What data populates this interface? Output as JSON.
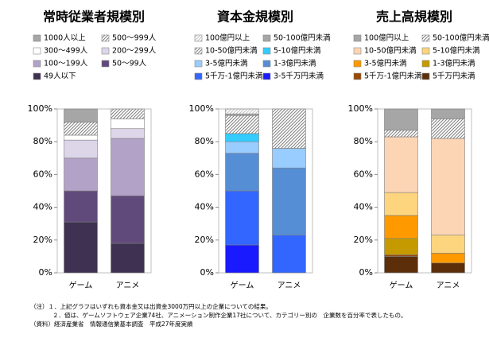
{
  "chart_data": [
    {
      "type": "stacked-bar",
      "title": "常時従業者規模別",
      "categories": [
        "ゲーム",
        "アニメ"
      ],
      "ylim": [
        0,
        100
      ],
      "yticks": [
        {
          "value": 0,
          "label": "0%"
        },
        {
          "value": 20,
          "label": "20%"
        },
        {
          "value": 40,
          "label": "40%"
        },
        {
          "value": 60,
          "label": "60%"
        },
        {
          "value": 80,
          "label": "80%"
        },
        {
          "value": 100,
          "label": "100%"
        }
      ],
      "series": [
        {
          "name": "1000人以上",
          "color": "#a6a6a6",
          "values": [
            8,
            0
          ]
        },
        {
          "name": "500～999人",
          "color": "#7f7f7f",
          "hatched": true,
          "values": [
            8,
            6
          ]
        },
        {
          "name": "300～499人",
          "color": "#ffffff",
          "values": [
            3,
            6
          ]
        },
        {
          "name": "200～299人",
          "color": "#ddd5e8",
          "values": [
            11,
            6
          ]
        },
        {
          "name": "100～199人",
          "color": "#b3a2c7",
          "values": [
            20,
            35
          ]
        },
        {
          "name": "50～99人",
          "color": "#604a7b",
          "values": [
            19,
            29
          ]
        },
        {
          "name": "49人以下",
          "color": "#3f3151",
          "values": [
            31,
            18
          ]
        }
      ]
    },
    {
      "type": "stacked-bar",
      "title": "資本金規模別",
      "categories": [
        "ゲーム",
        "アニメ"
      ],
      "ylim": [
        0,
        100
      ],
      "yticks": [
        {
          "value": 0,
          "label": "0%"
        },
        {
          "value": 20,
          "label": "20%"
        },
        {
          "value": 40,
          "label": "40%"
        },
        {
          "value": 60,
          "label": "60%"
        },
        {
          "value": 80,
          "label": "80%"
        },
        {
          "value": 100,
          "label": "100%"
        }
      ],
      "series": [
        {
          "name": "100億円以上",
          "color": "#bfbfbf",
          "hatched": true,
          "values": [
            3,
            0
          ]
        },
        {
          "name": "50-100億円未満",
          "color": "#a6a6a6",
          "values": [
            1,
            0
          ]
        },
        {
          "name": "10-50億円未満",
          "color": "#7f7f7f",
          "hatched": true,
          "values": [
            11,
            24
          ]
        },
        {
          "name": "5-10億円未満",
          "color": "#33ccff",
          "values": [
            5,
            0
          ]
        },
        {
          "name": "3-5億円未満",
          "color": "#99ccff",
          "values": [
            7,
            12
          ]
        },
        {
          "name": "1-3億円未満",
          "color": "#558ed5",
          "values": [
            23,
            41
          ]
        },
        {
          "name": "5千万-1億円未満",
          "color": "#3366ff",
          "values": [
            33,
            23
          ]
        },
        {
          "name": "3-5千万円未満",
          "color": "#1a1aff",
          "values": [
            17,
            0
          ]
        }
      ]
    },
    {
      "type": "stacked-bar",
      "title": "売上高規模別",
      "categories": [
        "ゲーム",
        "アニメ"
      ],
      "ylim": [
        0,
        100
      ],
      "yticks": [
        {
          "value": 0,
          "label": "0%"
        },
        {
          "value": 20,
          "label": "20%"
        },
        {
          "value": 40,
          "label": "40%"
        },
        {
          "value": 60,
          "label": "60%"
        },
        {
          "value": 80,
          "label": "80%"
        },
        {
          "value": 100,
          "label": "100%"
        }
      ],
      "series": [
        {
          "name": "100億円以上",
          "color": "#a6a6a6",
          "values": [
            13,
            6
          ]
        },
        {
          "name": "50-100億円未満",
          "color": "#7f7f7f",
          "hatched": true,
          "values": [
            4,
            12
          ]
        },
        {
          "name": "10-50億円未満",
          "color": "#fcd5b5",
          "values": [
            34,
            59
          ]
        },
        {
          "name": "5-10億円未満",
          "color": "#fdd57e",
          "values": [
            14,
            11
          ]
        },
        {
          "name": "3-5億円未満",
          "color": "#ff9900",
          "values": [
            14,
            6
          ]
        },
        {
          "name": "1-3億円未満",
          "color": "#c49a00",
          "values": [
            10,
            0
          ]
        },
        {
          "name": "5千万-1億円未満",
          "color": "#984807",
          "values": [
            1,
            0
          ]
        },
        {
          "name": "5千万円未満",
          "color": "#5c2e0a",
          "values": [
            10,
            6
          ]
        }
      ]
    }
  ],
  "notes": [
    "（注）１．上記グラフはいずれも資本金又は出資金3000万円以上の企業についての結果。",
    "２．値は、ゲームソフトウェア企業74社、アニメーション制作企業17社について、カテゴリー別の　企業数を百分率で表したもの。",
    "（資料）経済産業省　情報通信業基本調査　平成27年度実績"
  ]
}
